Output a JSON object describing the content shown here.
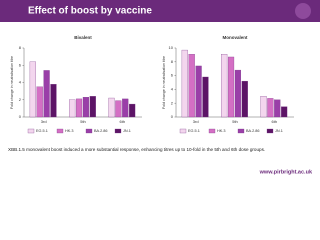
{
  "header": {
    "title": "Effect of boost by vaccine"
  },
  "caption": "XBB.1.5 monovalent boost induced a more substantial response, enhancing titres up to 10-fold in the 5th and 6th dose groups.",
  "footer": "www.pirbright.ac.uk",
  "chart_data": [
    {
      "type": "bar",
      "title": "Bivalent",
      "y_label": "Fold change in neutralisation titre",
      "categories": [
        "3rd",
        "5th",
        "6th"
      ],
      "series": [
        {
          "name": "EG.5.1",
          "color": "#f3d6ee",
          "values": [
            6.4,
            2.0,
            2.2
          ]
        },
        {
          "name": "HK.3",
          "color": "#d46fc4",
          "values": [
            3.5,
            2.1,
            1.9
          ]
        },
        {
          "name": "BA.2.86",
          "color": "#9a3fa8",
          "values": [
            5.4,
            2.3,
            2.1
          ]
        },
        {
          "name": "JN.1",
          "color": "#5c1466",
          "values": [
            3.8,
            2.4,
            1.5
          ]
        }
      ],
      "ylim": [
        0,
        8
      ],
      "yticks": [
        0,
        2,
        4,
        6,
        8
      ],
      "legend": "bottom"
    },
    {
      "type": "bar",
      "title": "Monovalent",
      "y_label": "Fold change in neutralisation titre",
      "categories": [
        "3rd",
        "5th",
        "6th"
      ],
      "series": [
        {
          "name": "EG.5.1",
          "color": "#f3d6ee",
          "values": [
            9.7,
            9.1,
            3.0
          ]
        },
        {
          "name": "HK.3",
          "color": "#d46fc4",
          "values": [
            9.1,
            8.7,
            2.7
          ]
        },
        {
          "name": "BA.2.86",
          "color": "#9a3fa8",
          "values": [
            7.4,
            6.8,
            2.5
          ]
        },
        {
          "name": "JN.1",
          "color": "#5c1466",
          "values": [
            5.8,
            5.2,
            1.5
          ]
        }
      ],
      "ylim": [
        0,
        10
      ],
      "yticks": [
        0,
        2,
        4,
        6,
        8,
        10
      ],
      "legend": "bottom"
    }
  ]
}
